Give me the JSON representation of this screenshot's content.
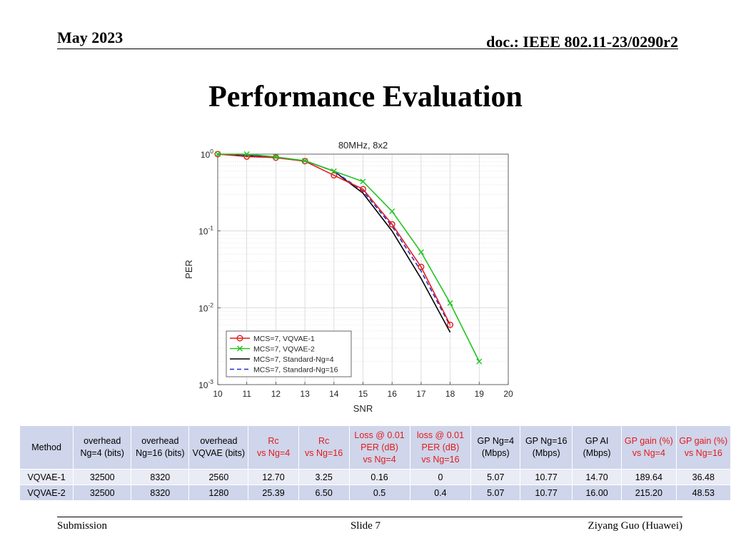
{
  "header": {
    "date": "May 2023",
    "doc": "doc.: IEEE 802.11-23/0290r2"
  },
  "slide_title": "Performance Evaluation",
  "chart_data": {
    "type": "line",
    "title": "80MHz, 8x2",
    "xlabel": "SNR",
    "ylabel": "PER",
    "xlim": [
      10,
      20
    ],
    "ylim": [
      0.001,
      1
    ],
    "yscale": "log",
    "grid": true,
    "legend_position": "bottom-left",
    "x_ticks": [
      "10",
      "11",
      "12",
      "13",
      "14",
      "15",
      "16",
      "17",
      "18",
      "19",
      "20"
    ],
    "y_ticks": [
      {
        "value": 1,
        "base": "10",
        "exp": "0"
      },
      {
        "value": 0.1,
        "base": "10",
        "exp": "-1"
      },
      {
        "value": 0.01,
        "base": "10",
        "exp": "-2"
      },
      {
        "value": 0.001,
        "base": "10",
        "exp": "-3"
      }
    ],
    "series": [
      {
        "name": "MCS=7, VQVAE-1",
        "color": "#e31a1c",
        "marker": "circle",
        "dash": "solid",
        "x": [
          10,
          11,
          12,
          13,
          14,
          15,
          16,
          17,
          18
        ],
        "y": [
          1.0,
          0.93,
          0.9,
          0.81,
          0.53,
          0.35,
          0.122,
          0.034,
          0.006
        ]
      },
      {
        "name": "MCS=7, VQVAE-2",
        "color": "#22c422",
        "marker": "cross",
        "dash": "solid",
        "x": [
          10,
          11,
          12,
          13,
          14,
          15,
          16,
          17,
          18,
          19
        ],
        "y": [
          1.0,
          1.0,
          0.92,
          0.82,
          0.6,
          0.44,
          0.18,
          0.053,
          0.0115,
          0.002
        ]
      },
      {
        "name": "MCS=7, Standard-Ng=4",
        "color": "#000000",
        "marker": "none",
        "dash": "solid",
        "x": [
          10,
          11,
          12,
          13,
          14,
          15,
          16,
          17,
          18
        ],
        "y": [
          1.0,
          0.96,
          0.9,
          0.82,
          0.6,
          0.31,
          0.1,
          0.024,
          0.0048
        ]
      },
      {
        "name": "MCS=7, Standard-Ng=16",
        "color": "#1f2fd4",
        "marker": "none",
        "dash": "dashed",
        "x": [
          10,
          11,
          12,
          13,
          14,
          15,
          16,
          17,
          18
        ],
        "y": [
          1.0,
          0.96,
          0.9,
          0.82,
          0.6,
          0.33,
          0.115,
          0.03,
          0.0058
        ]
      }
    ]
  },
  "table": {
    "headers": [
      {
        "lines": [
          "Method"
        ],
        "red": false
      },
      {
        "lines": [
          "overhead",
          "Ng=4 (bits)"
        ],
        "red": false
      },
      {
        "lines": [
          "overhead",
          "Ng=16 (bits)"
        ],
        "red": false
      },
      {
        "lines": [
          "overhead",
          "VQVAE (bits)"
        ],
        "red": false
      },
      {
        "lines": [
          "Rc",
          "vs Ng=4"
        ],
        "red": true
      },
      {
        "lines": [
          "Rc",
          "vs Ng=16"
        ],
        "red": true
      },
      {
        "lines": [
          "Loss @ 0.01",
          "PER (dB)",
          "vs Ng=4"
        ],
        "red": true
      },
      {
        "lines": [
          "loss @ 0.01",
          "PER (dB)",
          "vs Ng=16"
        ],
        "red": true
      },
      {
        "lines": [
          "GP Ng=4",
          "(Mbps)"
        ],
        "red": false
      },
      {
        "lines": [
          "GP Ng=16",
          "(Mbps)"
        ],
        "red": false
      },
      {
        "lines": [
          "GP AI",
          "(Mbps)"
        ],
        "red": false
      },
      {
        "lines": [
          "GP gain (%)",
          "vs Ng=4"
        ],
        "red": true
      },
      {
        "lines": [
          "GP gain (%)",
          "vs Ng=16"
        ],
        "red": true
      }
    ],
    "rows": [
      [
        "VQVAE-1",
        "32500",
        "8320",
        "2560",
        "12.70",
        "3.25",
        "0.16",
        "0",
        "5.07",
        "10.77",
        "14.70",
        "189.64",
        "36.48"
      ],
      [
        "VQVAE-2",
        "32500",
        "8320",
        "1280",
        "25.39",
        "6.50",
        "0.5",
        "0.4",
        "5.07",
        "10.77",
        "16.00",
        "215.20",
        "48.53"
      ]
    ]
  },
  "footer": {
    "left": "Submission",
    "center": "Slide 7",
    "right": "Ziyang Guo (Huawei)"
  }
}
